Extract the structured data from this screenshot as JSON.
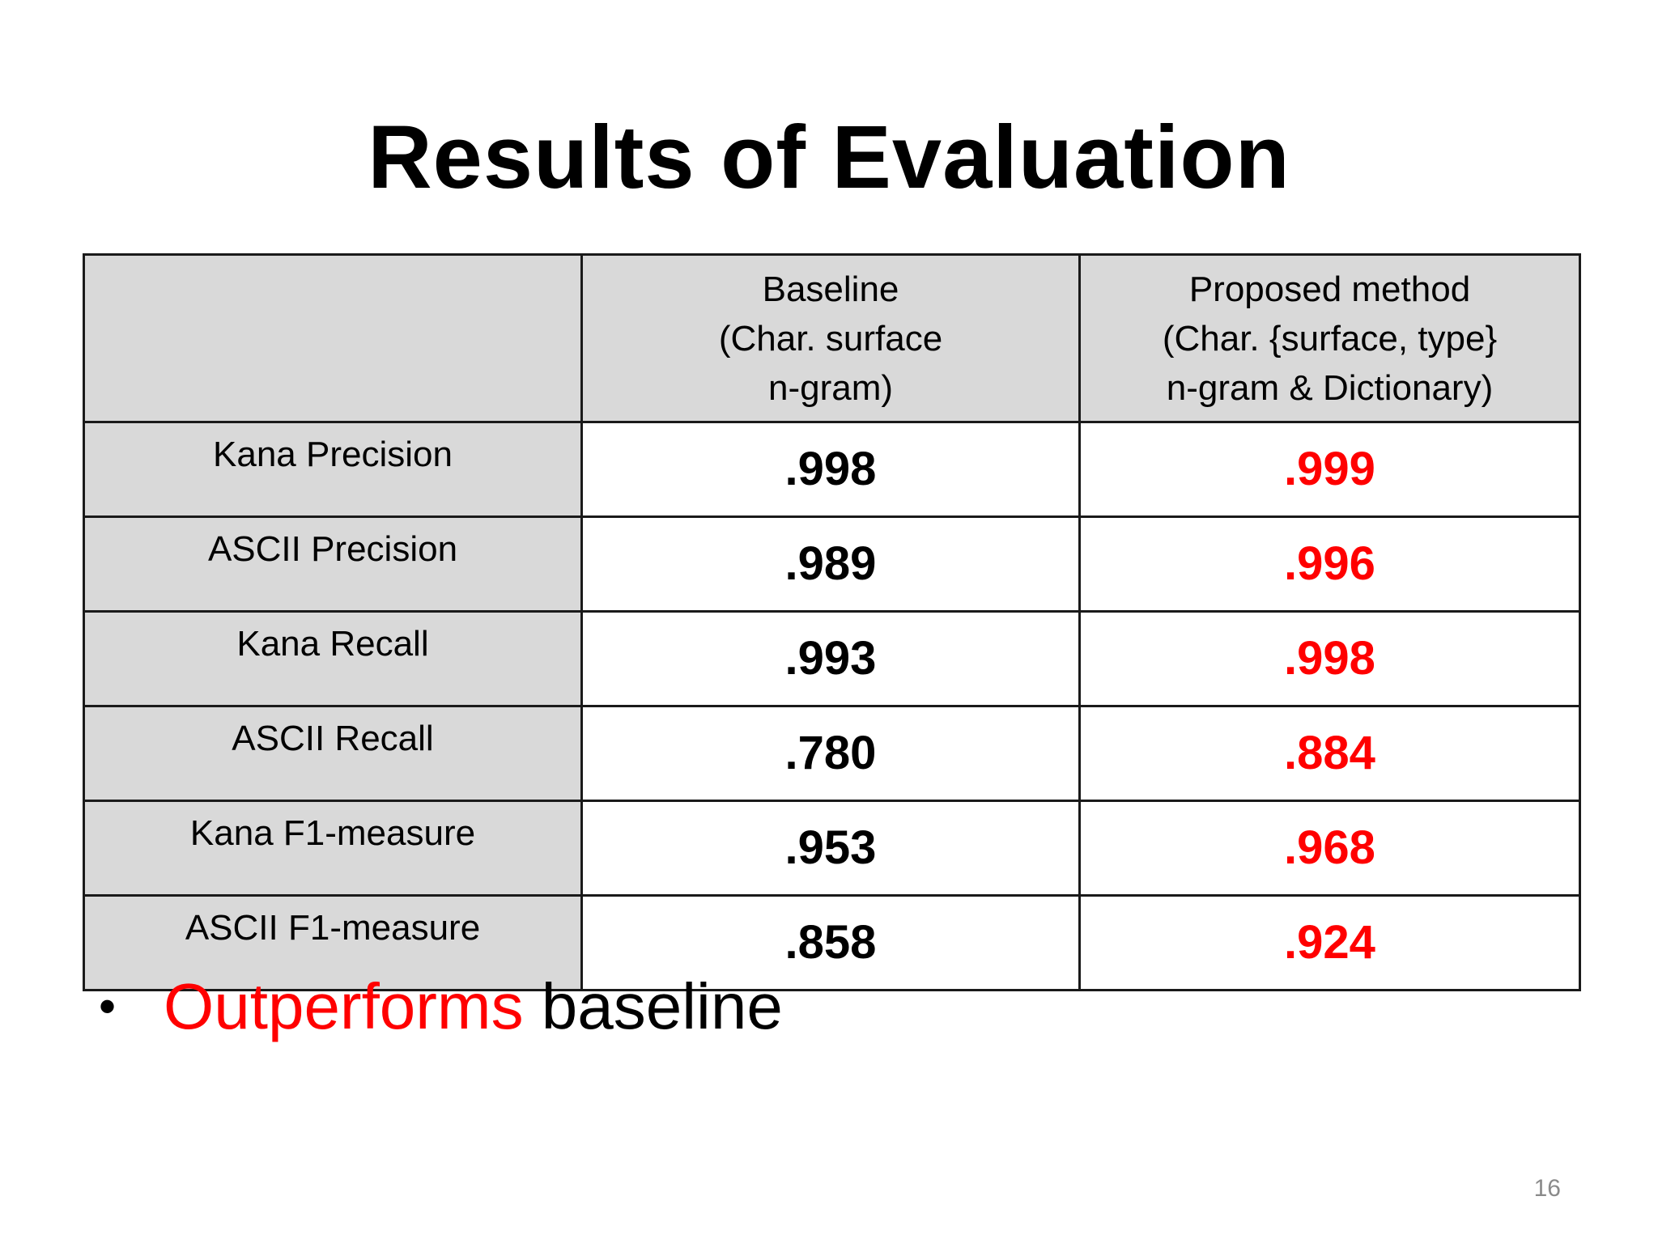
{
  "title": "Results of Evaluation",
  "table": {
    "headers": {
      "metric": "",
      "baseline": [
        "Baseline",
        "(Char. surface",
        "n-gram)"
      ],
      "proposed": [
        "Proposed method",
        "(Char. {surface, type}",
        "n-gram & Dictionary)"
      ]
    },
    "rows": [
      {
        "metric": "Kana Precision",
        "baseline": ".998",
        "proposed": ".999"
      },
      {
        "metric": "ASCII Precision",
        "baseline": ".989",
        "proposed": ".996"
      },
      {
        "metric": "Kana Recall",
        "baseline": ".993",
        "proposed": ".998"
      },
      {
        "metric": "ASCII Recall",
        "baseline": ".780",
        "proposed": ".884"
      },
      {
        "metric": "Kana F1-measure",
        "baseline": ".953",
        "proposed": ".968"
      },
      {
        "metric": "ASCII F1-measure",
        "baseline": ".858",
        "proposed": ".924"
      }
    ]
  },
  "bullet": {
    "symbol": "•",
    "highlight": "Outperforms",
    "rest": " baseline"
  },
  "page_number": "16",
  "colors": {
    "highlight": "#ff0000",
    "header_fill": "#d9d9d9",
    "text": "#000000"
  }
}
